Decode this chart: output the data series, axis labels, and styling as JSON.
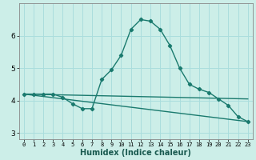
{
  "title": "",
  "xlabel": "Humidex (Indice chaleur)",
  "bg_color": "#cceee8",
  "grid_color": "#aadddd",
  "line_color": "#1a7a6e",
  "xlim": [
    -0.5,
    23.5
  ],
  "ylim": [
    2.8,
    7.0
  ],
  "xticks": [
    0,
    1,
    2,
    3,
    4,
    5,
    6,
    7,
    8,
    9,
    10,
    11,
    12,
    13,
    14,
    15,
    16,
    17,
    18,
    19,
    20,
    21,
    22,
    23
  ],
  "yticks": [
    3,
    4,
    5,
    6
  ],
  "series_main": {
    "x": [
      0,
      1,
      2,
      3,
      4,
      5,
      6,
      7,
      8,
      9,
      10,
      11,
      12,
      13,
      14,
      15,
      16,
      17,
      18,
      19,
      20,
      21,
      22,
      23
    ],
    "y": [
      4.2,
      4.2,
      4.2,
      4.2,
      4.1,
      3.9,
      3.75,
      3.75,
      4.65,
      4.95,
      5.4,
      6.2,
      6.5,
      6.45,
      6.2,
      5.7,
      5.0,
      4.5,
      4.35,
      4.25,
      4.05,
      3.85,
      3.5,
      3.35
    ]
  },
  "series_flat": {
    "x": [
      0,
      23
    ],
    "y": [
      4.2,
      4.05
    ]
  },
  "series_diag": {
    "x": [
      0,
      23
    ],
    "y": [
      4.2,
      3.35
    ]
  }
}
